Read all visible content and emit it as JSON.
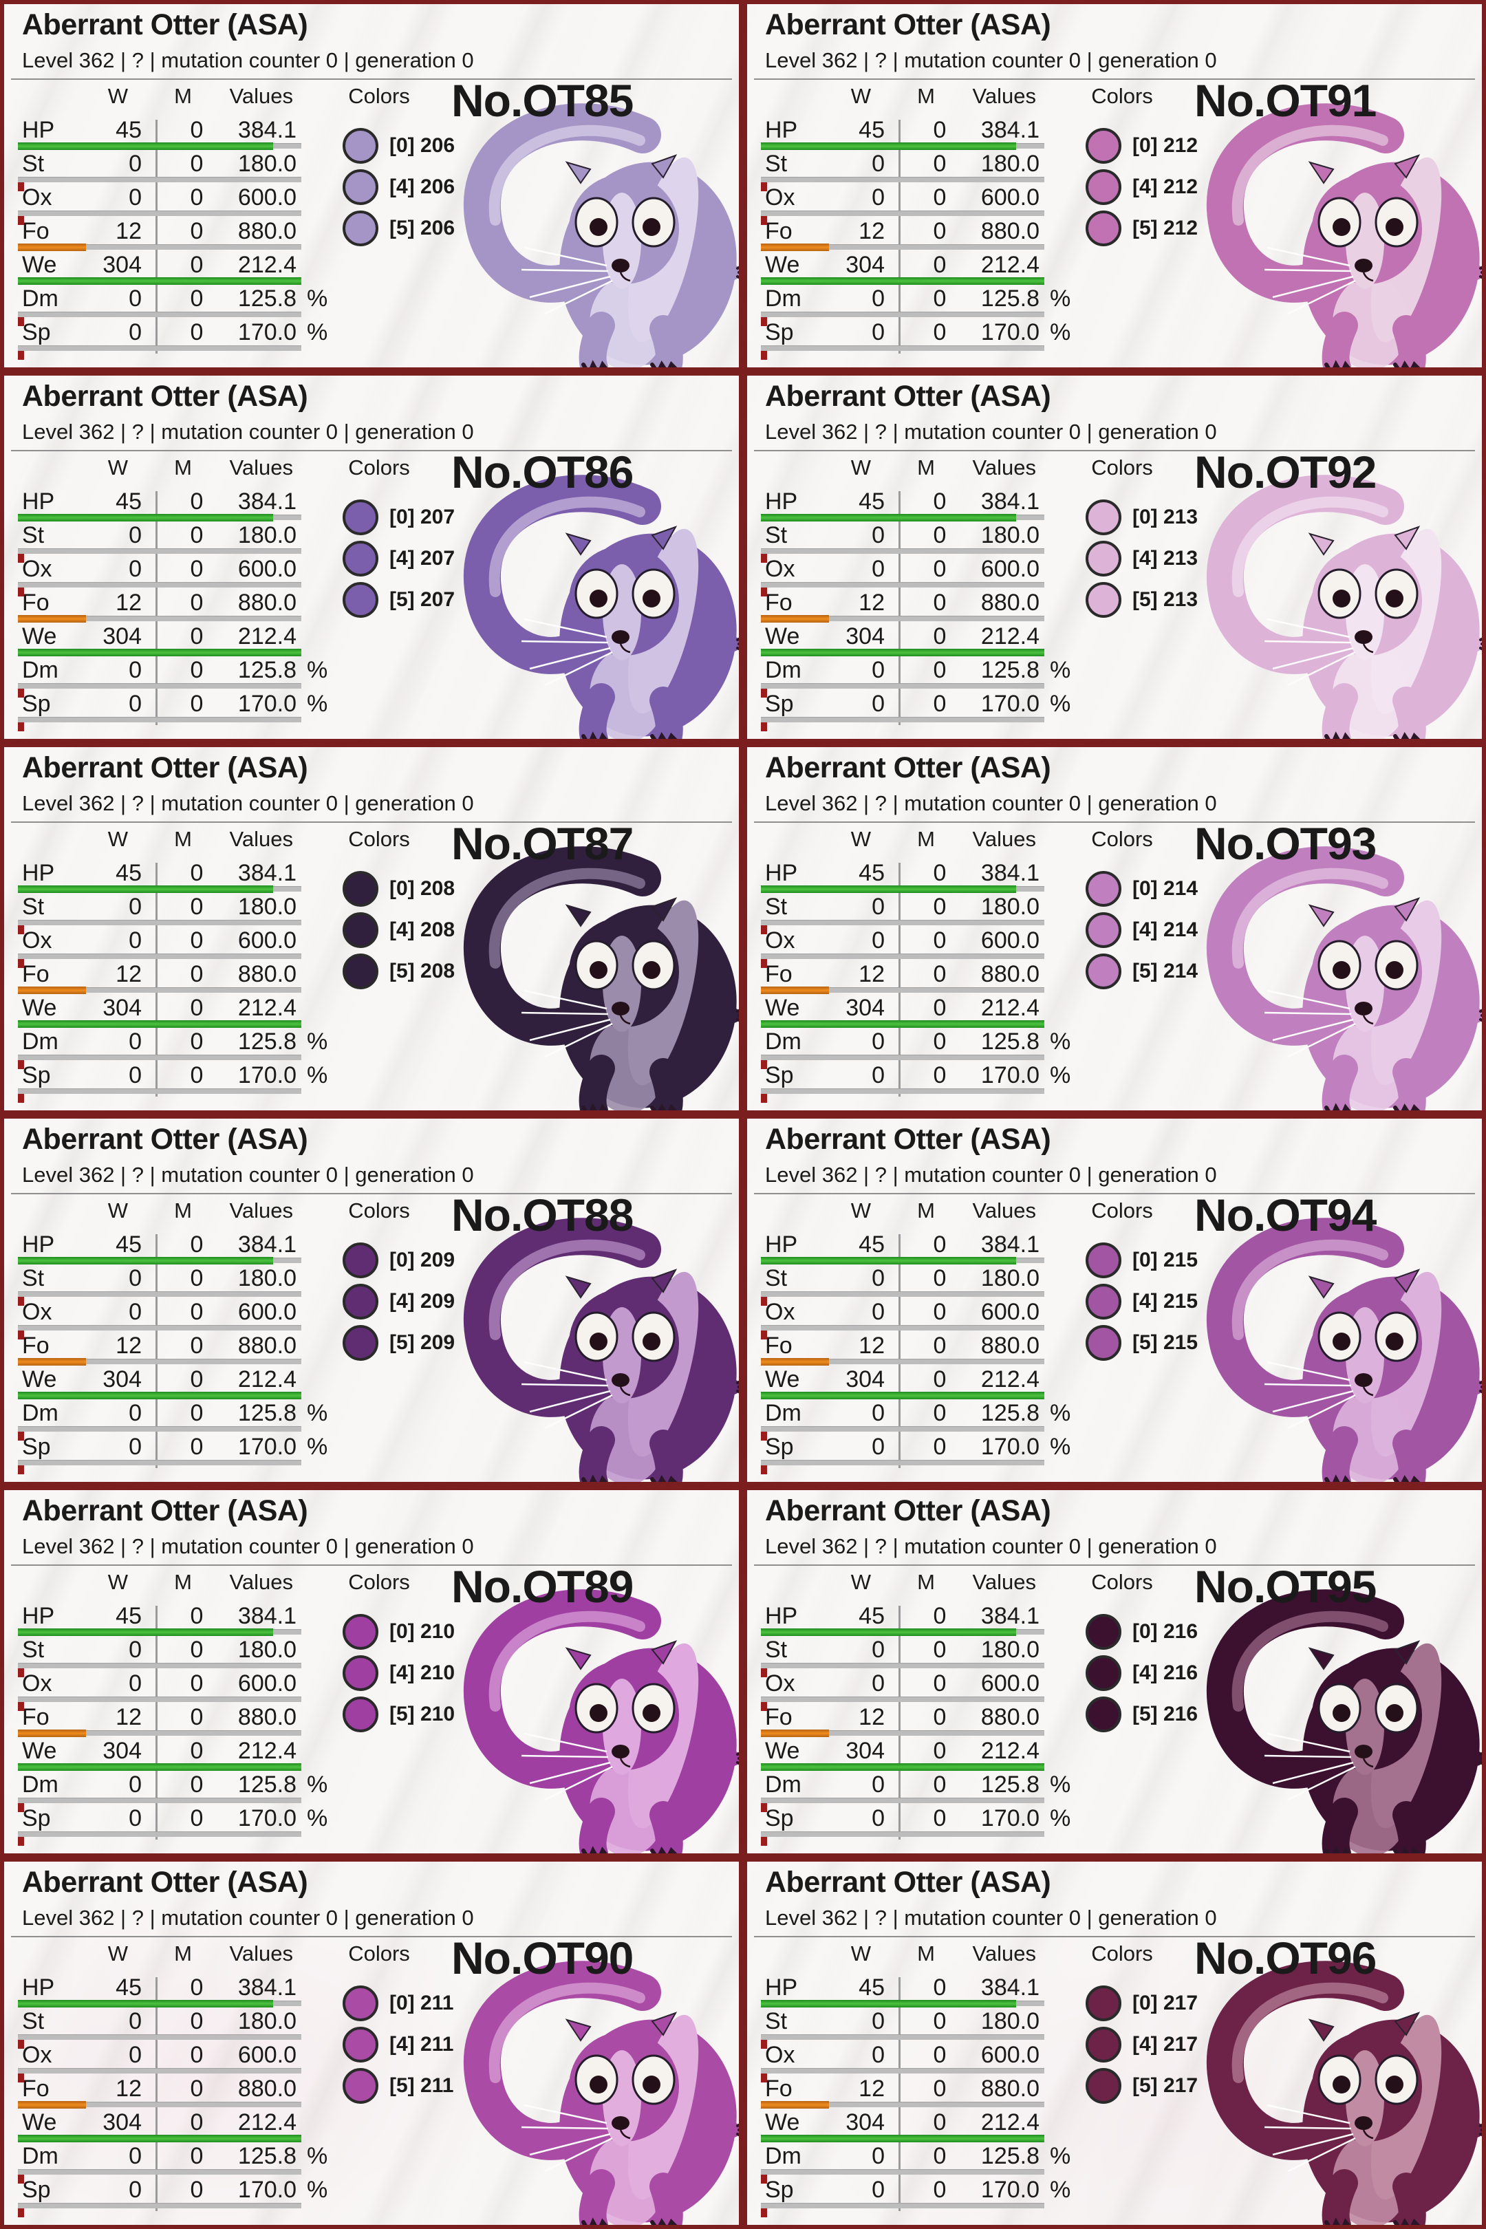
{
  "shared": {
    "title": "Aberrant Otter (ASA)",
    "subtitle": "Level 362 | ? | mutation counter 0 | generation 0",
    "colors_header": "Colors",
    "table": {
      "headers": {
        "w": "W",
        "m": "M",
        "values": "Values"
      },
      "rows": [
        {
          "label": "HP",
          "w": "45",
          "m": "0",
          "value": "384.1",
          "suffix": "",
          "bar": "green",
          "bar_pct": 90,
          "tick": false
        },
        {
          "label": "St",
          "w": "0",
          "m": "0",
          "value": "180.0",
          "suffix": "",
          "bar": "none",
          "bar_pct": 0,
          "tick": true
        },
        {
          "label": "Ox",
          "w": "0",
          "m": "0",
          "value": "600.0",
          "suffix": "",
          "bar": "none",
          "bar_pct": 0,
          "tick": true
        },
        {
          "label": "Fo",
          "w": "12",
          "m": "0",
          "value": "880.0",
          "suffix": "",
          "bar": "orange",
          "bar_pct": 24,
          "tick": false
        },
        {
          "label": "We",
          "w": "304",
          "m": "0",
          "value": "212.4",
          "suffix": "",
          "bar": "green",
          "bar_pct": 100,
          "tick": false
        },
        {
          "label": "Dm",
          "w": "0",
          "m": "0",
          "value": "125.8",
          "suffix": "%",
          "bar": "none",
          "bar_pct": 0,
          "tick": true
        },
        {
          "label": "Sp",
          "w": "0",
          "m": "0",
          "value": "170.0",
          "suffix": "%",
          "bar": "none",
          "bar_pct": 0,
          "tick": true
        }
      ]
    }
  },
  "palette": {
    "card_border": "#7a1e20",
    "bar_green": "#33a42d",
    "bar_orange": "#ee8c1e",
    "bar_track": "#bcbcbc",
    "mutation_tick": "#9b1c1c",
    "text": "#1a1a1a"
  },
  "cards": [
    {
      "number": "No.OT85",
      "color_hex": "#a594c6",
      "color_light": "#ded5ec",
      "colors": [
        "[0] 206",
        "[4] 206",
        "[5] 206"
      ]
    },
    {
      "number": "No.OT91",
      "color_hex": "#c172b3",
      "color_light": "#ead0e3",
      "colors": [
        "[0] 212",
        "[4] 212",
        "[5] 212"
      ]
    },
    {
      "number": "No.OT86",
      "color_hex": "#7b5fad",
      "color_light": "#cfc2e2",
      "colors": [
        "[0] 207",
        "[4] 207",
        "[5] 207"
      ]
    },
    {
      "number": "No.OT92",
      "color_hex": "#ddb3d8",
      "color_light": "#f3e4f1",
      "colors": [
        "[0] 213",
        "[4] 213",
        "[5] 213"
      ]
    },
    {
      "number": "No.OT87",
      "color_hex": "#301f3d",
      "color_light": "#9c8cab",
      "colors": [
        "[0] 208",
        "[4] 208",
        "[5] 208"
      ]
    },
    {
      "number": "No.OT93",
      "color_hex": "#c07fbe",
      "color_light": "#e8cbe7",
      "colors": [
        "[0] 214",
        "[4] 214",
        "[5] 214"
      ]
    },
    {
      "number": "No.OT88",
      "color_hex": "#602d72",
      "color_light": "#c29ace",
      "colors": [
        "[0] 209",
        "[4] 209",
        "[5] 209"
      ]
    },
    {
      "number": "No.OT94",
      "color_hex": "#a155a3",
      "color_light": "#dcb2dc",
      "colors": [
        "[0] 215",
        "[4] 215",
        "[5] 215"
      ]
    },
    {
      "number": "No.OT89",
      "color_hex": "#9e3fa1",
      "color_light": "#dfa8de",
      "colors": [
        "[0] 210",
        "[4] 210",
        "[5] 210"
      ]
    },
    {
      "number": "No.OT95",
      "color_hex": "#3c1130",
      "color_light": "#a4718f",
      "colors": [
        "[0] 216",
        "[4] 216",
        "[5] 216"
      ]
    },
    {
      "number": "No.OT90",
      "color_hex": "#aa4ca5",
      "color_light": "#e2aedd",
      "colors": [
        "[0] 211",
        "[4] 211",
        "[5] 211"
      ]
    },
    {
      "number": "No.OT96",
      "color_hex": "#6d2347",
      "color_light": "#c08ba3",
      "colors": [
        "[0] 217",
        "[4] 217",
        "[5] 217"
      ]
    }
  ]
}
